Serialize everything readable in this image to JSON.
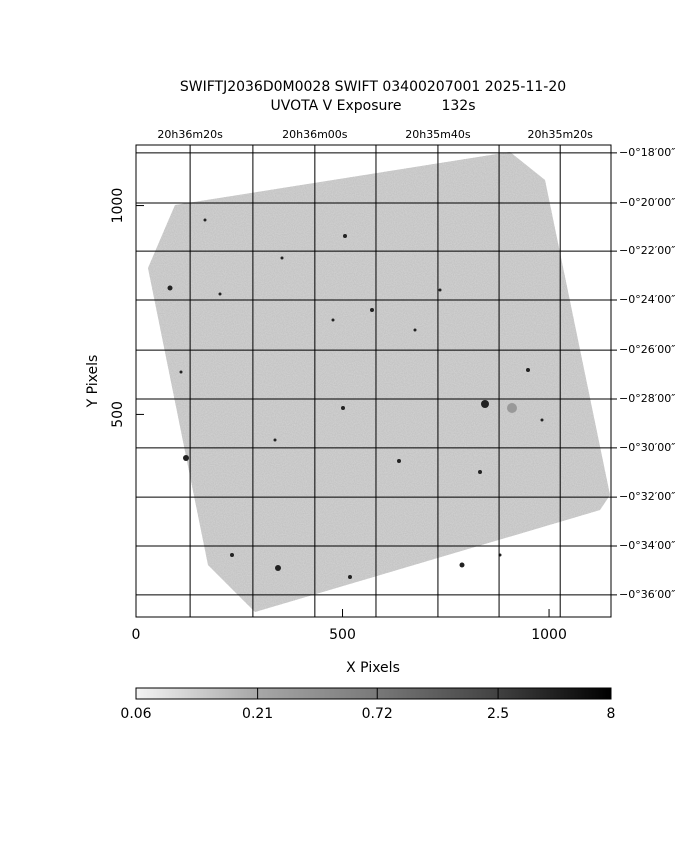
{
  "chart_data": {
    "type": "image",
    "title": "SWIFTJ2036D0M0028 SWIFT 03400207001 2025-11-20",
    "subtitle": "UVOTA V Exposure         132s",
    "x_label": "X Pixels",
    "y_label": "Y Pixels",
    "xlim": [
      0,
      1150
    ],
    "ylim": [
      15,
      1145
    ],
    "xticks": [
      0,
      500,
      1000
    ],
    "yticks": [
      500,
      1000
    ],
    "grid": true,
    "ra_ticks": [
      {
        "value": 131,
        "label": "20h36m20s"
      },
      {
        "value": 433,
        "label": "20h36m00s"
      },
      {
        "value": 731,
        "label": "20h35m40s"
      },
      {
        "value": 1027,
        "label": "20h35m20s"
      }
    ],
    "ra_minor_ticks": [
      283,
      581,
      879
    ],
    "dec_ticks": [
      {
        "value": 1126,
        "label": "−0°18′00″"
      },
      {
        "value": 1006,
        "label": "−0°20′00″"
      },
      {
        "value": 891,
        "label": "−0°22′00″"
      },
      {
        "value": 774,
        "label": "−0°24′00″"
      },
      {
        "value": 654,
        "label": "−0°26′00″"
      },
      {
        "value": 537,
        "label": "−0°28′00″"
      },
      {
        "value": 420,
        "label": "−0°30′00″"
      },
      {
        "value": 302,
        "label": "−0°32′00″"
      },
      {
        "value": 185,
        "label": "−0°34′00″"
      },
      {
        "value": 68,
        "label": "−0°36′00″"
      }
    ],
    "colorbar": {
      "scale": "log",
      "lim": [
        0.06,
        8
      ],
      "ticks": [
        0.06,
        0.21,
        0.72,
        2.5,
        8
      ]
    }
  }
}
